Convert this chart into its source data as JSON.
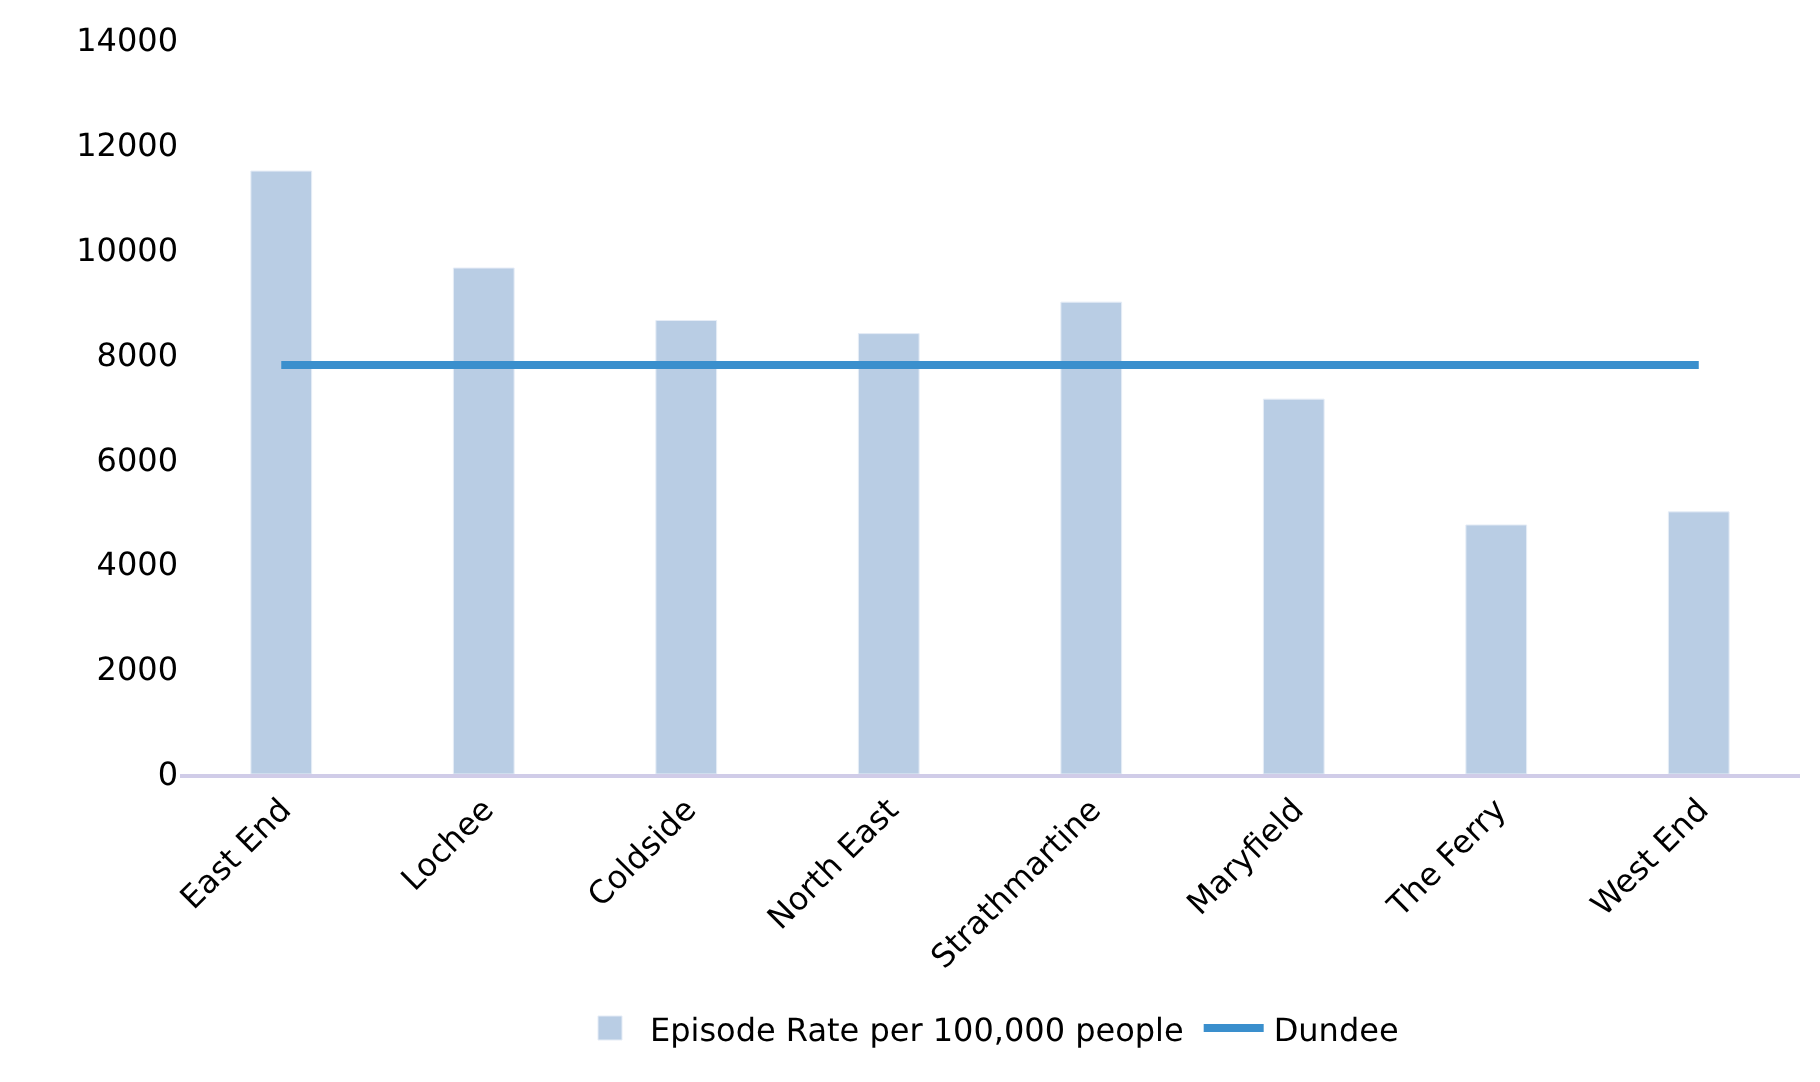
{
  "chart_data": {
    "type": "bar",
    "categories": [
      "East End",
      "Lochee",
      "Coldside",
      "North East",
      "Strathmartine",
      "Maryfield",
      "The Ferry",
      "West End"
    ],
    "series": [
      {
        "name": "Episode Rate per 100,000 people",
        "color": "#b9cde4",
        "values": [
          11500,
          9650,
          8650,
          8400,
          9000,
          7150,
          4750,
          5000
        ]
      },
      {
        "name": "Dundee",
        "type": "line",
        "color": "#3a8fcd",
        "values": [
          7800,
          7800,
          7800,
          7800,
          7800,
          7800,
          7800,
          7800
        ]
      }
    ],
    "ylim": [
      0,
      14000
    ],
    "yticks": [
      0,
      2000,
      4000,
      6000,
      8000,
      10000,
      12000,
      14000
    ],
    "legend": "bottom",
    "marker": "none"
  }
}
